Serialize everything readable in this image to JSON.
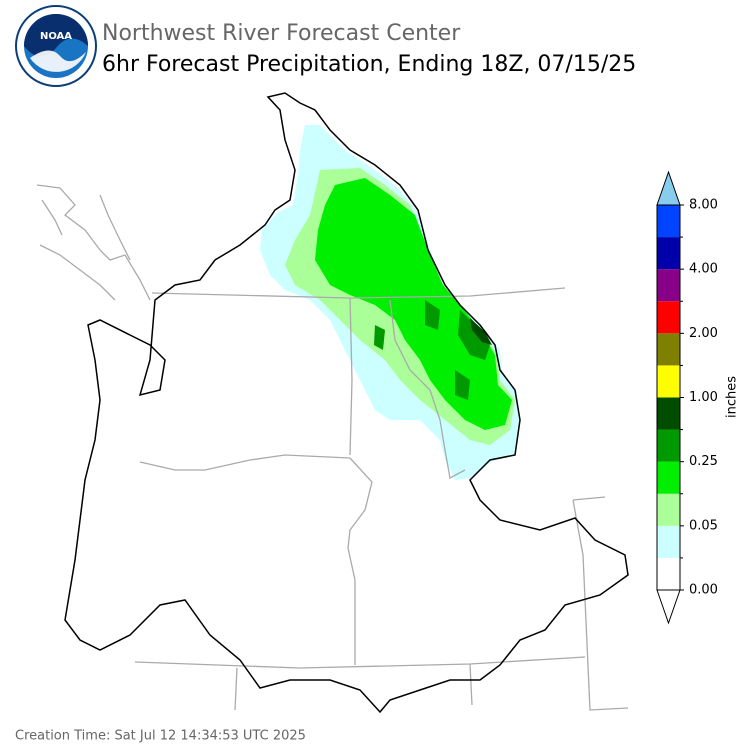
{
  "header": {
    "org": "Northwest River Forecast Center",
    "title": "6hr Forecast Precipitation, Ending 18Z, 07/15/25",
    "logo_text": "NOAA"
  },
  "colorbar": {
    "label": "inches",
    "colors": [
      "#ffffff",
      "#ccffff",
      "#aaff99",
      "#00ee00",
      "#009900",
      "#004d00",
      "#ffff00",
      "#808000",
      "#ff0000",
      "#880088",
      "#0000aa",
      "#0044ff"
    ],
    "over_color": "#88ccee",
    "under_color": "#ffffff",
    "ticks": [
      {
        "value": 0,
        "label": "0.00"
      },
      {
        "value": 0.05,
        "label": "0.05"
      },
      {
        "value": 0.25,
        "label": "0.25"
      },
      {
        "value": 1,
        "label": "1.00"
      },
      {
        "value": 2,
        "label": "2.00"
      },
      {
        "value": 4,
        "label": "4.00"
      },
      {
        "value": 8,
        "label": "8.00"
      }
    ]
  },
  "footer": {
    "creation_time": "Creation Time: Sat Jul 12 14:34:53 UTC 2025"
  }
}
